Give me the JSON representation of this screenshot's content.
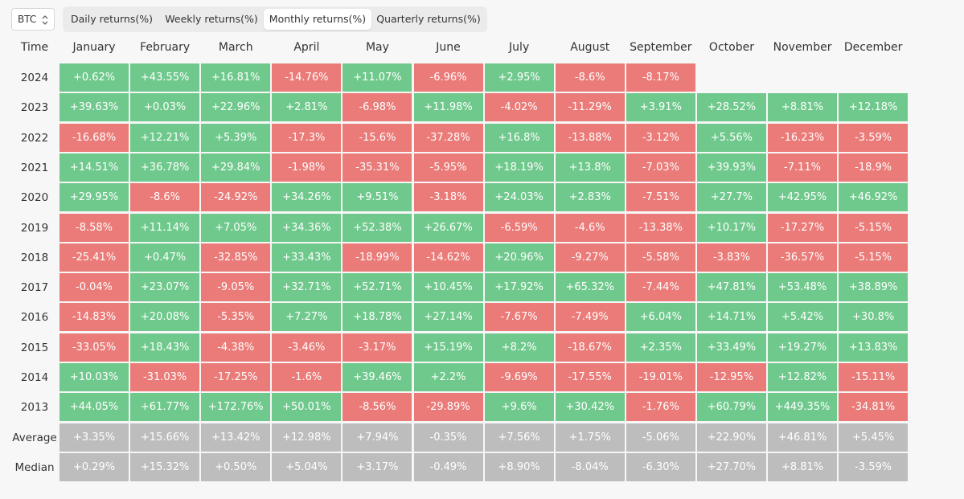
{
  "selector": {
    "label": "BTC"
  },
  "tabs": {
    "items": [
      "Daily returns(%)",
      "Weekly returns(%)",
      "Monthly returns(%)",
      "Quarterly returns(%)"
    ],
    "active": 2
  },
  "colors": {
    "positive": "#70c98c",
    "negative": "#ea7b78",
    "summary": "#bdbdbd"
  },
  "table": {
    "header": [
      "Time",
      "January",
      "February",
      "March",
      "April",
      "May",
      "June",
      "July",
      "August",
      "September",
      "October",
      "November",
      "December"
    ],
    "rows": [
      {
        "label": "2024",
        "cells": [
          "+0.62%",
          "+43.55%",
          "+16.81%",
          "-14.76%",
          "+11.07%",
          "-6.96%",
          "+2.95%",
          "-8.6%",
          "-8.17%"
        ]
      },
      {
        "label": "2023",
        "cells": [
          "+39.63%",
          "+0.03%",
          "+22.96%",
          "+2.81%",
          "-6.98%",
          "+11.98%",
          "-4.02%",
          "-11.29%",
          "+3.91%",
          "+28.52%",
          "+8.81%",
          "+12.18%"
        ]
      },
      {
        "label": "2022",
        "cells": [
          "-16.68%",
          "+12.21%",
          "+5.39%",
          "-17.3%",
          "-15.6%",
          "-37.28%",
          "+16.8%",
          "-13.88%",
          "-3.12%",
          "+5.56%",
          "-16.23%",
          "-3.59%"
        ]
      },
      {
        "label": "2021",
        "cells": [
          "+14.51%",
          "+36.78%",
          "+29.84%",
          "-1.98%",
          "-35.31%",
          "-5.95%",
          "+18.19%",
          "+13.8%",
          "-7.03%",
          "+39.93%",
          "-7.11%",
          "-18.9%"
        ]
      },
      {
        "label": "2020",
        "cells": [
          "+29.95%",
          "-8.6%",
          "-24.92%",
          "+34.26%",
          "+9.51%",
          "-3.18%",
          "+24.03%",
          "+2.83%",
          "-7.51%",
          "+27.7%",
          "+42.95%",
          "+46.92%"
        ]
      },
      {
        "label": "2019",
        "cells": [
          "-8.58%",
          "+11.14%",
          "+7.05%",
          "+34.36%",
          "+52.38%",
          "+26.67%",
          "-6.59%",
          "-4.6%",
          "-13.38%",
          "+10.17%",
          "-17.27%",
          "-5.15%"
        ]
      },
      {
        "label": "2018",
        "cells": [
          "-25.41%",
          "+0.47%",
          "-32.85%",
          "+33.43%",
          "-18.99%",
          "-14.62%",
          "+20.96%",
          "-9.27%",
          "-5.58%",
          "-3.83%",
          "-36.57%",
          "-5.15%"
        ]
      },
      {
        "label": "2017",
        "cells": [
          "-0.04%",
          "+23.07%",
          "-9.05%",
          "+32.71%",
          "+52.71%",
          "+10.45%",
          "+17.92%",
          "+65.32%",
          "-7.44%",
          "+47.81%",
          "+53.48%",
          "+38.89%"
        ]
      },
      {
        "label": "2016",
        "cells": [
          "-14.83%",
          "+20.08%",
          "-5.35%",
          "+7.27%",
          "+18.78%",
          "+27.14%",
          "-7.67%",
          "-7.49%",
          "+6.04%",
          "+14.71%",
          "+5.42%",
          "+30.8%"
        ]
      },
      {
        "label": "2015",
        "cells": [
          "-33.05%",
          "+18.43%",
          "-4.38%",
          "-3.46%",
          "-3.17%",
          "+15.19%",
          "+8.2%",
          "-18.67%",
          "+2.35%",
          "+33.49%",
          "+19.27%",
          "+13.83%"
        ]
      },
      {
        "label": "2014",
        "cells": [
          "+10.03%",
          "-31.03%",
          "-17.25%",
          "-1.6%",
          "+39.46%",
          "+2.2%",
          "-9.69%",
          "-17.55%",
          "-19.01%",
          "-12.95%",
          "+12.82%",
          "-15.11%"
        ]
      },
      {
        "label": "2013",
        "cells": [
          "+44.05%",
          "+61.77%",
          "+172.76%",
          "+50.01%",
          "-8.56%",
          "-29.89%",
          "+9.6%",
          "+30.42%",
          "-1.76%",
          "+60.79%",
          "+449.35%",
          "-34.81%"
        ]
      }
    ],
    "summary": [
      {
        "label": "Average",
        "cells": [
          "+3.35%",
          "+15.66%",
          "+13.42%",
          "+12.98%",
          "+7.94%",
          "-0.35%",
          "+7.56%",
          "+1.75%",
          "-5.06%",
          "+22.90%",
          "+46.81%",
          "+5.45%"
        ]
      },
      {
        "label": "Median",
        "cells": [
          "+0.29%",
          "+15.32%",
          "+0.50%",
          "+5.04%",
          "+3.17%",
          "-0.49%",
          "+8.90%",
          "-8.04%",
          "-6.30%",
          "+27.70%",
          "+8.81%",
          "-3.59%"
        ]
      }
    ]
  }
}
